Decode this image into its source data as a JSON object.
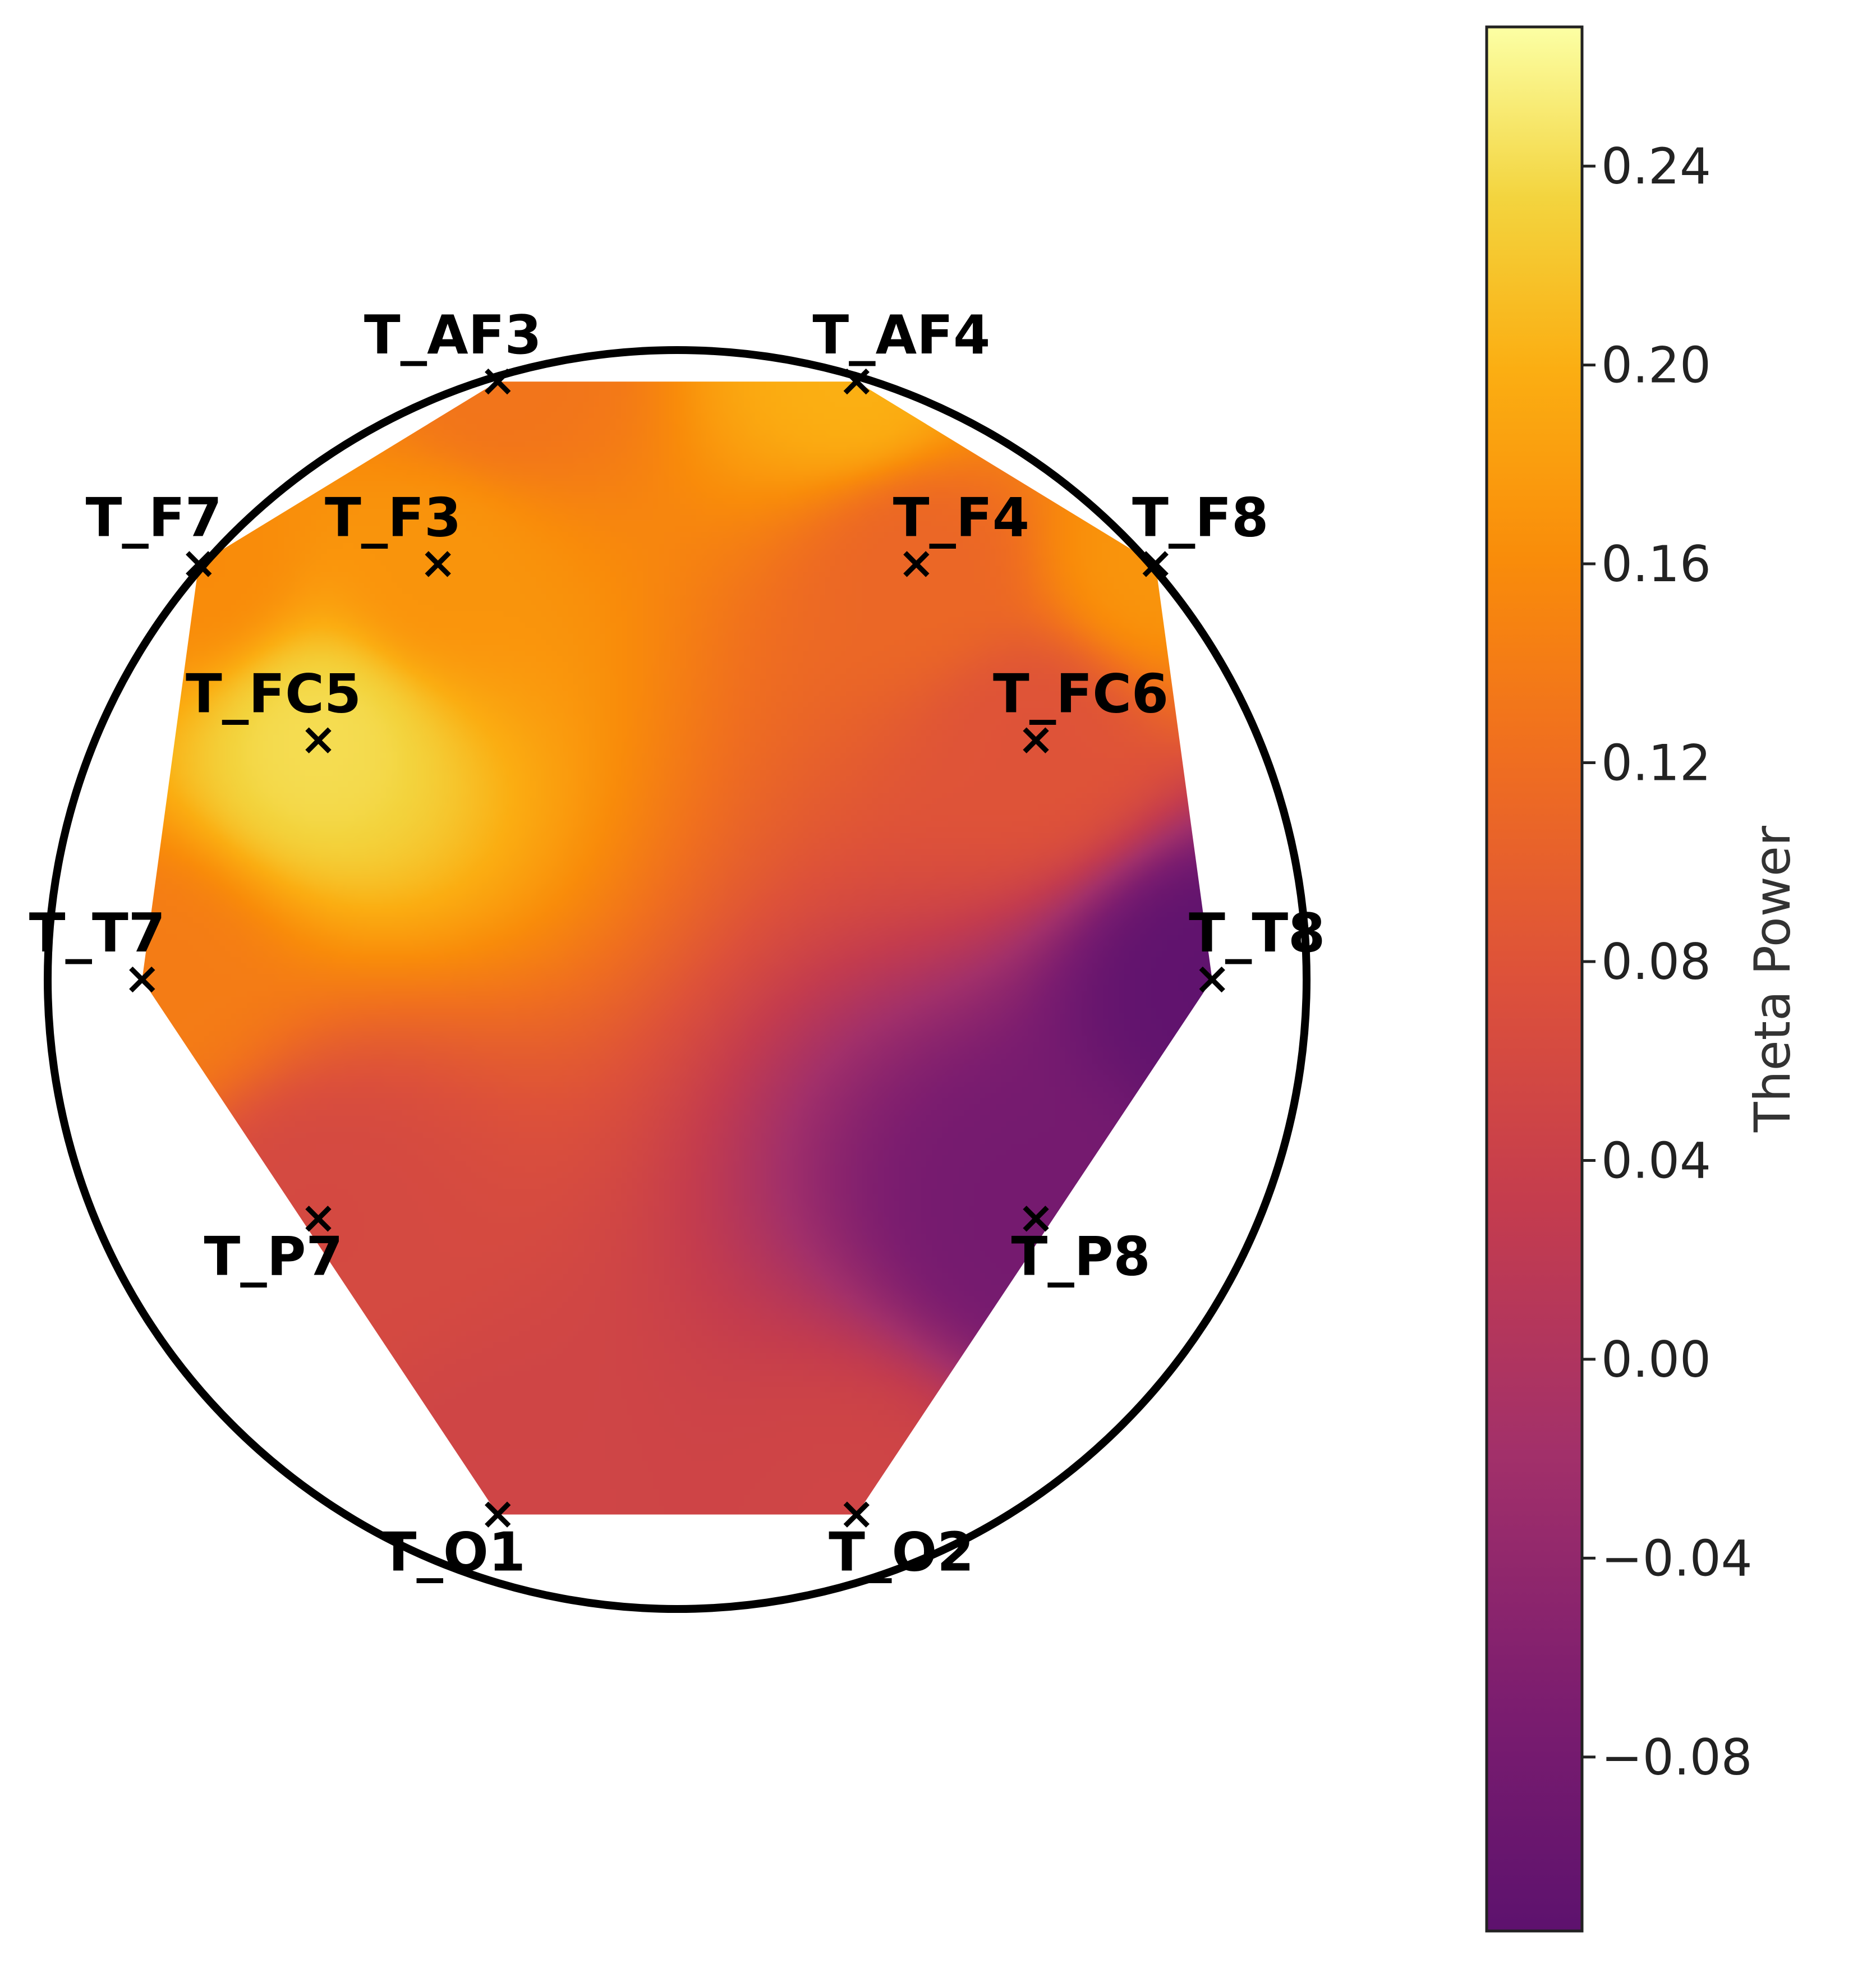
{
  "chart_data": {
    "type": "heatmap",
    "subtype": "eeg-topomap",
    "colormap": "inferno",
    "colorbar": {
      "label": "Theta Power",
      "range": [
        -0.115,
        0.268
      ],
      "ticks": [
        "0.24",
        "0.20",
        "0.16",
        "0.12",
        "0.08",
        "0.04",
        "0.00",
        "−0.04",
        "−0.08"
      ],
      "tick_values": [
        0.24,
        0.2,
        0.16,
        0.12,
        0.08,
        0.04,
        0.0,
        -0.04,
        -0.08
      ]
    },
    "head_outline": "circle",
    "marker": "×",
    "electrodes": [
      {
        "name": "T_AF3",
        "x": -0.285,
        "y": 0.95,
        "value": 0.13
      },
      {
        "name": "T_AF4",
        "x": 0.285,
        "y": 0.95,
        "value": 0.2
      },
      {
        "name": "T_F7",
        "x": -0.76,
        "y": 0.66,
        "value": 0.16
      },
      {
        "name": "T_F3",
        "x": -0.38,
        "y": 0.66,
        "value": 0.17
      },
      {
        "name": "T_F4",
        "x": 0.38,
        "y": 0.66,
        "value": 0.11
      },
      {
        "name": "T_F8",
        "x": 0.76,
        "y": 0.66,
        "value": 0.17
      },
      {
        "name": "T_FC5",
        "x": -0.57,
        "y": 0.38,
        "value": 0.24
      },
      {
        "name": "T_FC6",
        "x": 0.57,
        "y": 0.38,
        "value": 0.08
      },
      {
        "name": "T_T7",
        "x": -0.85,
        "y": 0.0,
        "value": 0.14
      },
      {
        "name": "T_T8",
        "x": 0.85,
        "y": 0.0,
        "value": -0.11
      },
      {
        "name": "T_P7",
        "x": -0.57,
        "y": -0.38,
        "value": 0.06
      },
      {
        "name": "T_P8",
        "x": 0.57,
        "y": -0.38,
        "value": -0.08
      },
      {
        "name": "T_O1",
        "x": -0.285,
        "y": -0.85,
        "value": 0.05
      },
      {
        "name": "T_O2",
        "x": 0.285,
        "y": -0.85,
        "value": 0.05
      }
    ]
  }
}
